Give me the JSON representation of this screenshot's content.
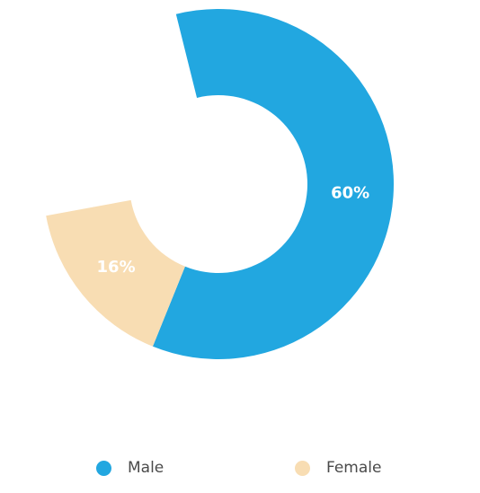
{
  "chart_data": {
    "type": "pie",
    "variant": "donut",
    "slices": [
      {
        "label": "Male",
        "value": 60,
        "display": "60%",
        "color": "#22a7e0"
      },
      {
        "label": "Female",
        "value": 16,
        "display": "16%",
        "color": "#f8ddb3"
      }
    ],
    "legend": {
      "position": "bottom",
      "items": [
        {
          "label": "Male",
          "color": "#22a7e0"
        },
        {
          "label": "Female",
          "color": "#f8ddb3"
        }
      ]
    }
  }
}
